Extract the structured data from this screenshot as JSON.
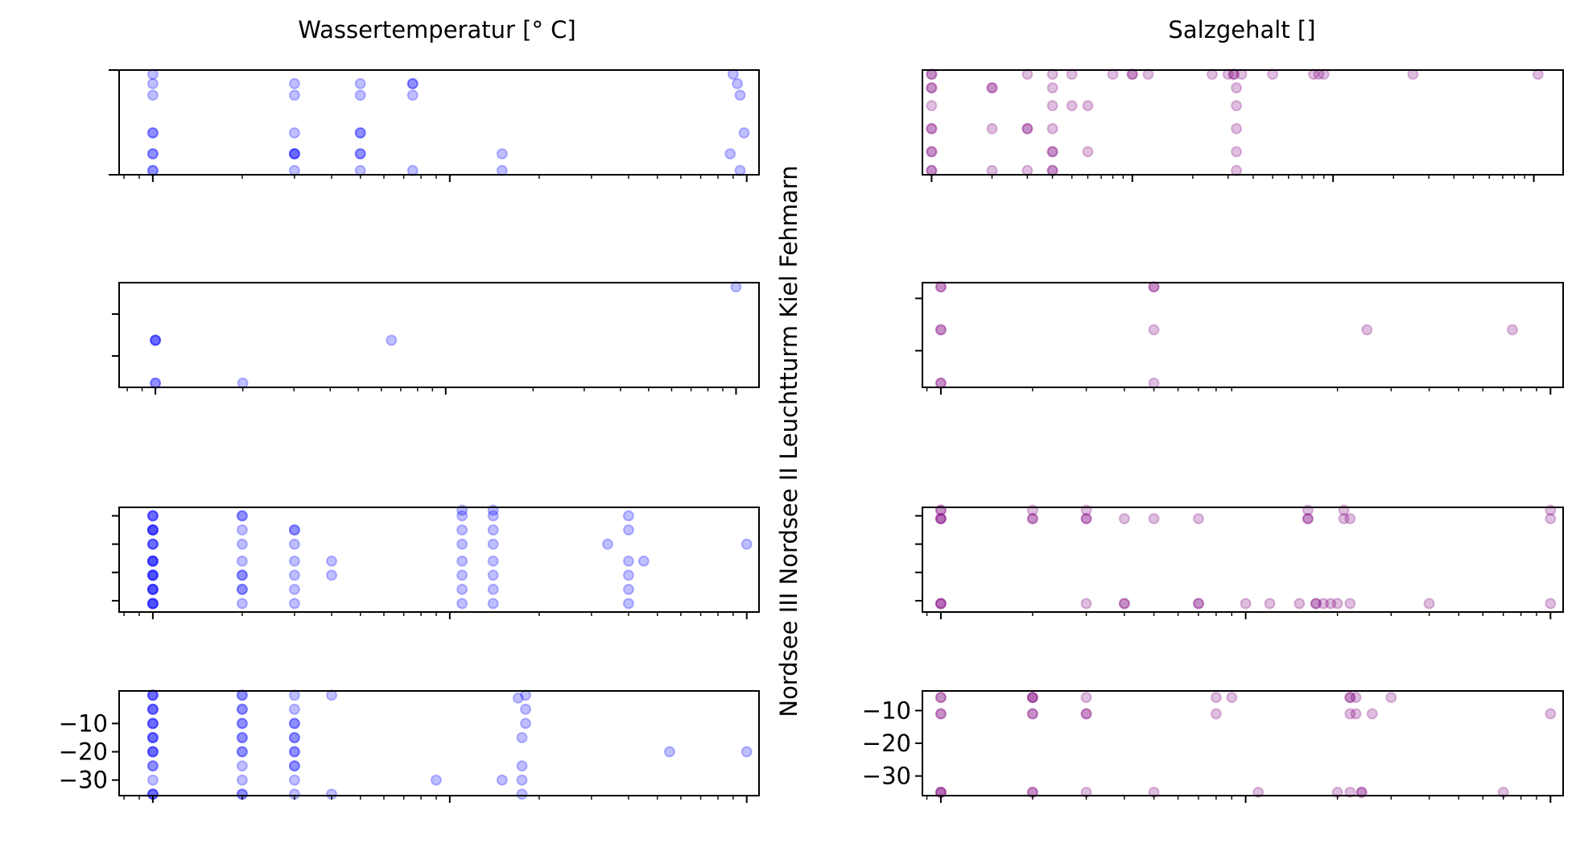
{
  "figure": {
    "column_titles": [
      "Wassertemperatur [° C]",
      "Salzgehalt []"
    ],
    "row_labels": [
      "Fehmarn",
      "Kiel",
      "Leuchtturm",
      "Nordsee II",
      "Nordsee III"
    ],
    "row_label_line": "Nordsee III Nordsee II Leuchtturm Kiel Fehmarn",
    "colors": {
      "temperature": "#0000ff",
      "salinity": "#800080"
    },
    "marker_opacity": 0.25
  },
  "chart_data": [
    {
      "type": "scatter",
      "panel": "Fehmarn-Wassertemperatur",
      "color": "#0000ff",
      "xscale": "log",
      "xlim": [
        0.77,
        110
      ],
      "ylim": [
        0.0,
        1.0
      ],
      "xticks": [
        1,
        10,
        100
      ],
      "yticks": [],
      "yticklabels": [],
      "points": [
        [
          1,
          0.96
        ],
        [
          1,
          0.87
        ],
        [
          1,
          0.76
        ],
        [
          1,
          0.4
        ],
        [
          1,
          0.4
        ],
        [
          1,
          0.2
        ],
        [
          1,
          0.2
        ],
        [
          1,
          0.04
        ],
        [
          1,
          0.04
        ],
        [
          3,
          0.87
        ],
        [
          3,
          0.76
        ],
        [
          3,
          0.4
        ],
        [
          3,
          0.2
        ],
        [
          3,
          0.2
        ],
        [
          3,
          0.2
        ],
        [
          3,
          0.04
        ],
        [
          5,
          0.87
        ],
        [
          5,
          0.76
        ],
        [
          5,
          0.4
        ],
        [
          5,
          0.4
        ],
        [
          5,
          0.2
        ],
        [
          5,
          0.2
        ],
        [
          5,
          0.04
        ],
        [
          7.5,
          0.87
        ],
        [
          7.5,
          0.87
        ],
        [
          7.5,
          0.76
        ],
        [
          7.5,
          0.04
        ],
        [
          15,
          0.2
        ],
        [
          15,
          0.04
        ],
        [
          90,
          0.96
        ],
        [
          93,
          0.87
        ],
        [
          95,
          0.76
        ],
        [
          98,
          0.4
        ],
        [
          88,
          0.2
        ],
        [
          95,
          0.04
        ]
      ]
    },
    {
      "type": "scatter",
      "panel": "Fehmarn-Salzgehalt",
      "color": "#800080",
      "xscale": "log",
      "xlim": [
        0.9,
        1400
      ],
      "ylim": [
        0.0,
        1.0
      ],
      "xticks": [
        1,
        10,
        100,
        1000
      ],
      "yticks": [],
      "yticklabels": [],
      "points": [
        [
          1,
          0.96
        ],
        [
          1,
          0.96
        ],
        [
          1,
          0.83
        ],
        [
          1,
          0.83
        ],
        [
          1,
          0.66
        ],
        [
          1,
          0.44
        ],
        [
          1,
          0.44
        ],
        [
          1,
          0.22
        ],
        [
          1,
          0.22
        ],
        [
          1,
          0.04
        ],
        [
          1,
          0.04
        ],
        [
          2,
          0.83
        ],
        [
          2,
          0.83
        ],
        [
          2,
          0.44
        ],
        [
          2,
          0.04
        ],
        [
          3,
          0.96
        ],
        [
          3,
          0.44
        ],
        [
          3,
          0.44
        ],
        [
          3,
          0.04
        ],
        [
          4,
          0.96
        ],
        [
          4,
          0.83
        ],
        [
          4,
          0.66
        ],
        [
          4,
          0.44
        ],
        [
          4,
          0.22
        ],
        [
          4,
          0.22
        ],
        [
          4,
          0.04
        ],
        [
          4,
          0.04
        ],
        [
          5,
          0.96
        ],
        [
          5,
          0.66
        ],
        [
          6,
          0.66
        ],
        [
          6,
          0.22
        ],
        [
          8,
          0.96
        ],
        [
          10,
          0.96
        ],
        [
          10,
          0.96
        ],
        [
          12,
          0.96
        ],
        [
          25,
          0.96
        ],
        [
          30,
          0.96
        ],
        [
          32,
          0.96
        ],
        [
          32,
          0.96
        ],
        [
          33,
          0.83
        ],
        [
          33,
          0.66
        ],
        [
          33,
          0.44
        ],
        [
          33,
          0.22
        ],
        [
          33,
          0.04
        ],
        [
          35,
          0.96
        ],
        [
          50,
          0.96
        ],
        [
          80,
          0.96
        ],
        [
          85,
          0.96
        ],
        [
          90,
          0.96
        ],
        [
          250,
          0.96
        ],
        [
          1050,
          0.96
        ]
      ]
    },
    {
      "type": "scatter",
      "panel": "Kiel-Wassertemperatur",
      "color": "#0000ff",
      "xscale": "log",
      "xlim": [
        0.75,
        120
      ],
      "ylim": [
        0.0,
        1.0
      ],
      "xticks": [
        1,
        10,
        100
      ],
      "yticks": [
        0.3,
        0.7
      ],
      "yticklabels": [],
      "points": [
        [
          1,
          0.45
        ],
        [
          1,
          0.45
        ],
        [
          1,
          0.45
        ],
        [
          1,
          0.04
        ],
        [
          1,
          0.04
        ],
        [
          2,
          0.04
        ],
        [
          6.5,
          0.45
        ],
        [
          100,
          0.96
        ]
      ]
    },
    {
      "type": "scatter",
      "panel": "Kiel-Salzgehalt",
      "color": "#800080",
      "xscale": "log",
      "xlim": [
        0.87,
        110
      ],
      "ylim": [
        0.0,
        1.0
      ],
      "xticks": [
        1,
        100
      ],
      "yticks": [
        0.35,
        0.85
      ],
      "yticklabels": [],
      "points": [
        [
          1,
          0.96
        ],
        [
          1,
          0.96
        ],
        [
          1,
          0.55
        ],
        [
          1,
          0.55
        ],
        [
          1,
          0.04
        ],
        [
          1,
          0.04
        ],
        [
          5,
          0.96
        ],
        [
          5,
          0.96
        ],
        [
          5,
          0.55
        ],
        [
          5,
          0.04
        ],
        [
          25,
          0.55
        ],
        [
          75,
          0.55
        ]
      ]
    },
    {
      "type": "scatter",
      "panel": "NordseeII-Wassertemperatur",
      "color": "#0000ff",
      "xscale": "log",
      "xlim": [
        0.77,
        110
      ],
      "ylim": [
        -34,
        3
      ],
      "xticks": [
        1,
        10,
        100
      ],
      "yticks": [
        -30,
        -20,
        -10,
        0
      ],
      "yticklabels": [],
      "points": [
        [
          1,
          -31
        ],
        [
          1,
          -31
        ],
        [
          1,
          -31
        ],
        [
          1,
          -31
        ],
        [
          1,
          -26
        ],
        [
          1,
          -26
        ],
        [
          1,
          -26
        ],
        [
          1,
          -26
        ],
        [
          1,
          -21
        ],
        [
          1,
          -21
        ],
        [
          1,
          -21
        ],
        [
          1,
          -21
        ],
        [
          1,
          -16
        ],
        [
          1,
          -16
        ],
        [
          1,
          -16
        ],
        [
          1,
          -16
        ],
        [
          1,
          -10
        ],
        [
          1,
          -10
        ],
        [
          1,
          -10
        ],
        [
          1,
          -5
        ],
        [
          1,
          -5
        ],
        [
          1,
          -5
        ],
        [
          1,
          -5
        ],
        [
          1,
          0
        ],
        [
          1,
          0
        ],
        [
          1,
          0
        ],
        [
          2,
          -31
        ],
        [
          2,
          -26
        ],
        [
          2,
          -26
        ],
        [
          2,
          -21
        ],
        [
          2,
          -21
        ],
        [
          2,
          -16
        ],
        [
          2,
          -10
        ],
        [
          2,
          -5
        ],
        [
          2,
          0
        ],
        [
          2,
          0
        ],
        [
          3,
          -31
        ],
        [
          3,
          -26
        ],
        [
          3,
          -21
        ],
        [
          3,
          -16
        ],
        [
          3,
          -10
        ],
        [
          3,
          -5
        ],
        [
          3,
          -5
        ],
        [
          4,
          -21
        ],
        [
          4,
          -16
        ],
        [
          11,
          -31
        ],
        [
          11,
          -26
        ],
        [
          11,
          -21
        ],
        [
          11,
          -16
        ],
        [
          11,
          -10
        ],
        [
          11,
          -5
        ],
        [
          11,
          0
        ],
        [
          11,
          2
        ],
        [
          14,
          -31
        ],
        [
          14,
          -26
        ],
        [
          14,
          -21
        ],
        [
          14,
          -16
        ],
        [
          14,
          -10
        ],
        [
          14,
          -5
        ],
        [
          14,
          0
        ],
        [
          14,
          2
        ],
        [
          34,
          -10
        ],
        [
          40,
          -31
        ],
        [
          40,
          -26
        ],
        [
          40,
          -21
        ],
        [
          40,
          -16
        ],
        [
          40,
          -5
        ],
        [
          40,
          0
        ],
        [
          45,
          -16
        ],
        [
          100,
          -10
        ]
      ]
    },
    {
      "type": "scatter",
      "panel": "NordseeII-Salzgehalt",
      "color": "#800080",
      "xscale": "log",
      "xlim": [
        0.87,
        110
      ],
      "ylim": [
        -34,
        3
      ],
      "xticks": [
        1,
        10,
        100
      ],
      "yticks": [
        -30,
        -20,
        -10,
        0
      ],
      "yticklabels": [],
      "points": [
        [
          1,
          2
        ],
        [
          1,
          2
        ],
        [
          1,
          -1
        ],
        [
          1,
          -1
        ],
        [
          1,
          -1
        ],
        [
          1,
          -31
        ],
        [
          1,
          -31
        ],
        [
          1,
          -31
        ],
        [
          2,
          2
        ],
        [
          2,
          -1
        ],
        [
          2,
          -1
        ],
        [
          3,
          2
        ],
        [
          3,
          -1
        ],
        [
          3,
          -1
        ],
        [
          3,
          -31
        ],
        [
          4,
          -1
        ],
        [
          4,
          -31
        ],
        [
          4,
          -31
        ],
        [
          5,
          -1
        ],
        [
          7,
          -1
        ],
        [
          7,
          -31
        ],
        [
          7,
          -31
        ],
        [
          10,
          -31
        ],
        [
          12,
          -31
        ],
        [
          15,
          -31
        ],
        [
          16,
          2
        ],
        [
          16,
          -1
        ],
        [
          16,
          -1
        ],
        [
          17,
          -31
        ],
        [
          17,
          -31
        ],
        [
          18,
          -31
        ],
        [
          19,
          -31
        ],
        [
          20,
          -31
        ],
        [
          21,
          2
        ],
        [
          21,
          -1
        ],
        [
          22,
          -1
        ],
        [
          22,
          -31
        ],
        [
          40,
          -31
        ],
        [
          100,
          2
        ],
        [
          100,
          -1
        ],
        [
          100,
          -31
        ]
      ]
    },
    {
      "type": "scatter",
      "panel": "NordseeIII-Wassertemperatur",
      "color": "#0000ff",
      "xscale": "log",
      "xlim": [
        0.77,
        110
      ],
      "ylim": [
        -35.5,
        1.5
      ],
      "xticks": [
        1,
        10,
        100
      ],
      "yticks": [
        -30,
        -20,
        -10
      ],
      "yticklabels": [
        "−30",
        "−20",
        "−10"
      ],
      "points": [
        [
          1,
          0
        ],
        [
          1,
          0
        ],
        [
          1,
          0
        ],
        [
          1,
          -5
        ],
        [
          1,
          -5
        ],
        [
          1,
          -5
        ],
        [
          1,
          -10
        ],
        [
          1,
          -10
        ],
        [
          1,
          -10
        ],
        [
          1,
          -15
        ],
        [
          1,
          -15
        ],
        [
          1,
          -15
        ],
        [
          1,
          -20
        ],
        [
          1,
          -20
        ],
        [
          1,
          -20
        ],
        [
          1,
          -25
        ],
        [
          1,
          -25
        ],
        [
          1,
          -30
        ],
        [
          1,
          -35
        ],
        [
          1,
          -35
        ],
        [
          1,
          -35
        ],
        [
          2,
          0
        ],
        [
          2,
          0
        ],
        [
          2,
          -5
        ],
        [
          2,
          -5
        ],
        [
          2,
          -10
        ],
        [
          2,
          -10
        ],
        [
          2,
          -15
        ],
        [
          2,
          -15
        ],
        [
          2,
          -20
        ],
        [
          2,
          -20
        ],
        [
          2,
          -25
        ],
        [
          2,
          -30
        ],
        [
          2,
          -35
        ],
        [
          2,
          -35
        ],
        [
          3,
          0
        ],
        [
          3,
          -5
        ],
        [
          3,
          -10
        ],
        [
          3,
          -10
        ],
        [
          3,
          -15
        ],
        [
          3,
          -15
        ],
        [
          3,
          -20
        ],
        [
          3,
          -20
        ],
        [
          3,
          -25
        ],
        [
          3,
          -25
        ],
        [
          3,
          -30
        ],
        [
          3,
          -35
        ],
        [
          4,
          0
        ],
        [
          4,
          -35
        ],
        [
          9,
          -30
        ],
        [
          15,
          -30
        ],
        [
          17,
          -1
        ],
        [
          18,
          0
        ],
        [
          18,
          -5
        ],
        [
          18,
          -10
        ],
        [
          17.5,
          -15
        ],
        [
          17.5,
          -25
        ],
        [
          17.5,
          -30
        ],
        [
          17.5,
          -35
        ],
        [
          55,
          -20
        ],
        [
          100,
          -20
        ]
      ]
    },
    {
      "type": "scatter",
      "panel": "NordseeIII-Salzgehalt",
      "color": "#800080",
      "xscale": "log",
      "xlim": [
        0.87,
        110
      ],
      "ylim": [
        -36,
        -4
      ],
      "xticks": [
        1,
        10,
        100
      ],
      "yticks": [
        -30,
        -20,
        -10
      ],
      "yticklabels": [
        "−30",
        "−20",
        "−10"
      ],
      "points": [
        [
          1,
          -6
        ],
        [
          1,
          -6
        ],
        [
          1,
          -11
        ],
        [
          1,
          -11
        ],
        [
          1,
          -35
        ],
        [
          1,
          -35
        ],
        [
          1,
          -35
        ],
        [
          2,
          -6
        ],
        [
          2,
          -6
        ],
        [
          2,
          -6
        ],
        [
          2,
          -11
        ],
        [
          2,
          -11
        ],
        [
          2,
          -35
        ],
        [
          2,
          -35
        ],
        [
          3,
          -6
        ],
        [
          3,
          -11
        ],
        [
          3,
          -11
        ],
        [
          3,
          -35
        ],
        [
          5,
          -35
        ],
        [
          8,
          -6
        ],
        [
          8,
          -11
        ],
        [
          9,
          -6
        ],
        [
          11,
          -35
        ],
        [
          20,
          -35
        ],
        [
          22,
          -6
        ],
        [
          22,
          -6
        ],
        [
          22,
          -11
        ],
        [
          22,
          -35
        ],
        [
          23,
          -6
        ],
        [
          23,
          -11
        ],
        [
          24,
          -35
        ],
        [
          24,
          -35
        ],
        [
          26,
          -11
        ],
        [
          30,
          -6
        ],
        [
          70,
          -35
        ],
        [
          100,
          -11
        ]
      ]
    }
  ]
}
